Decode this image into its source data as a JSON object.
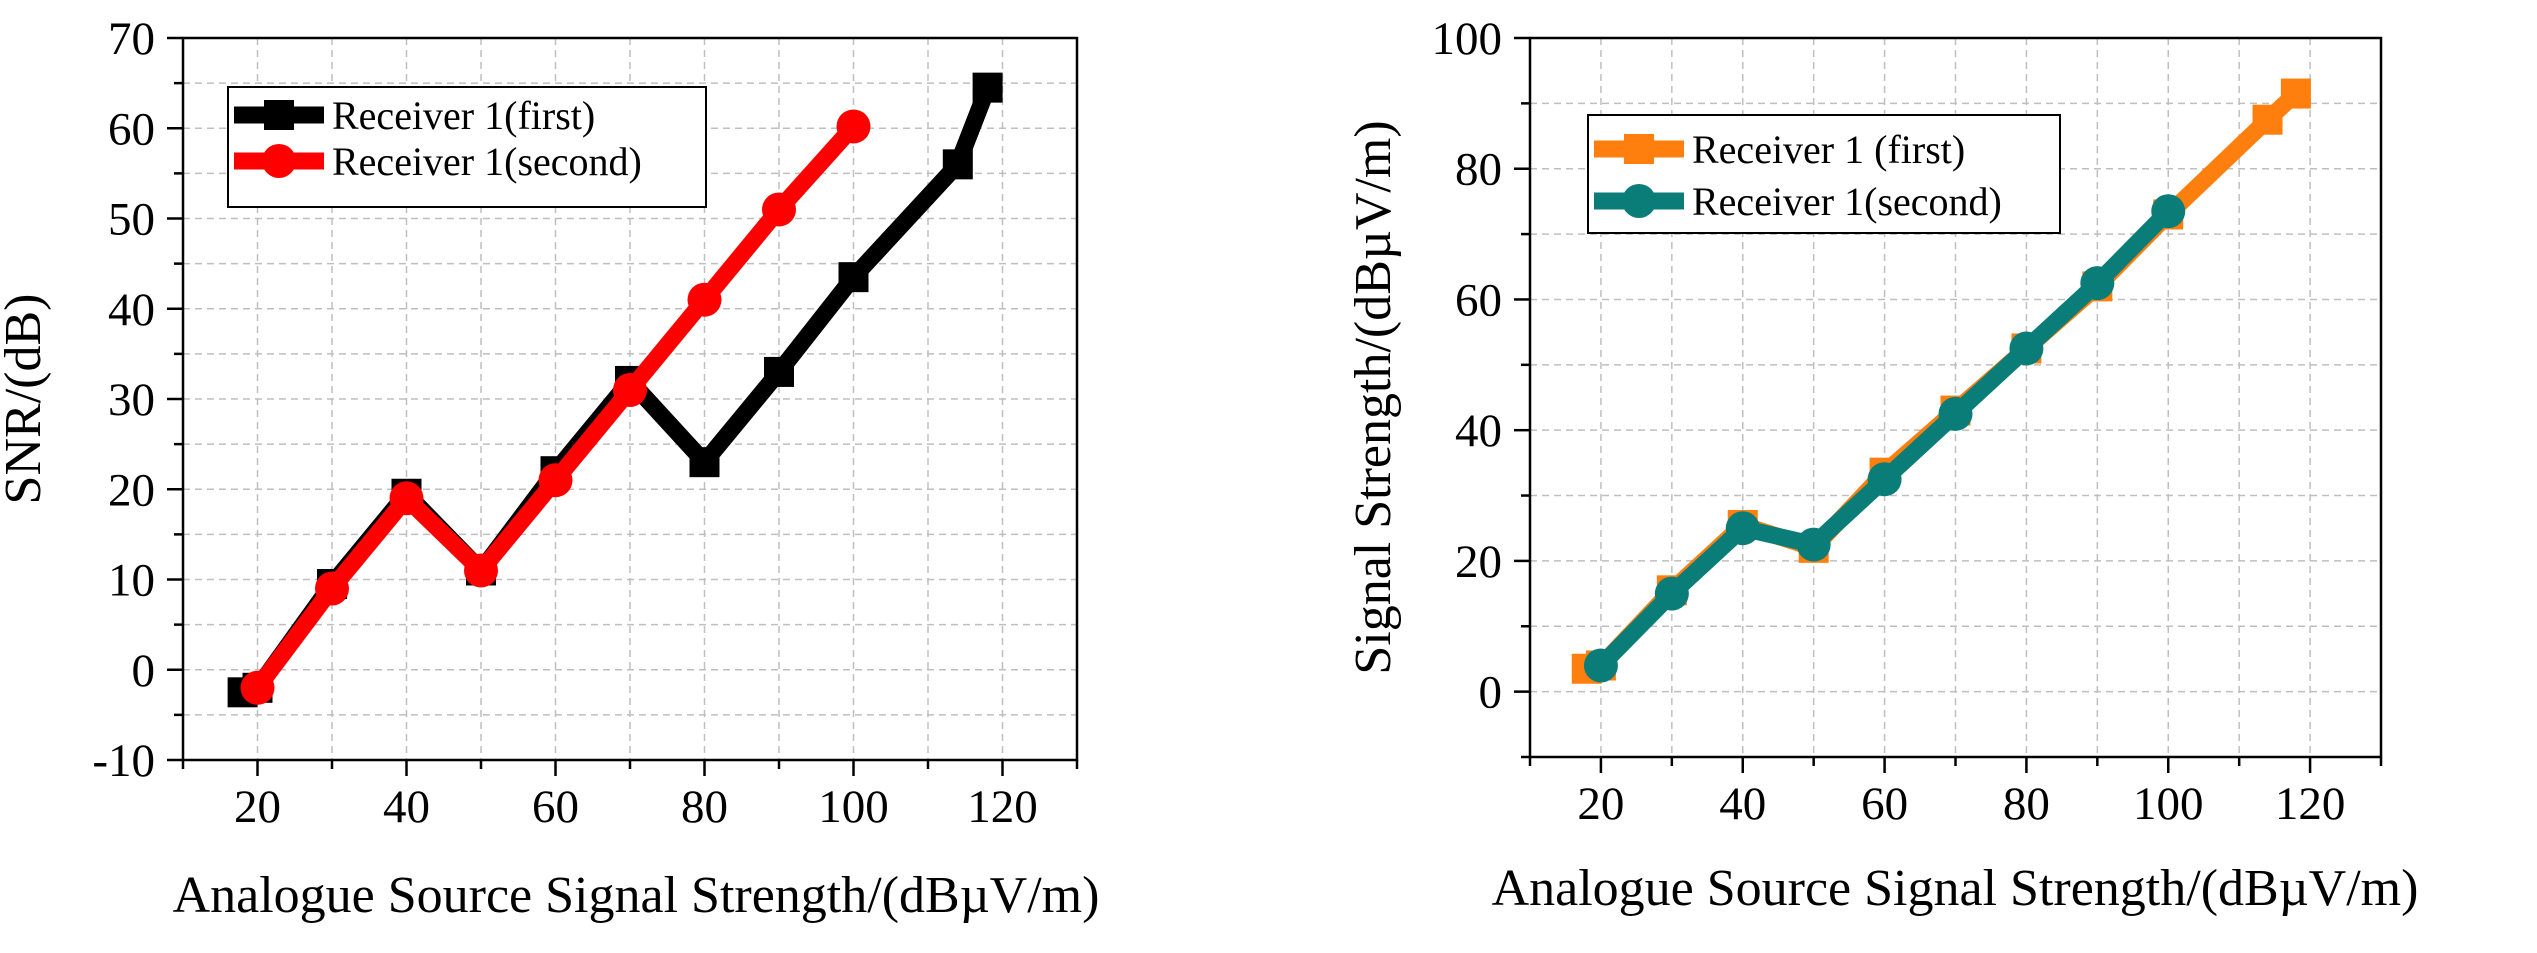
{
  "chart_data": [
    {
      "type": "line",
      "xlabel": "Analogue Source Signal Strength/(dBµV/m)",
      "ylabel": "SNR/(dB)",
      "xlim": [
        10,
        130
      ],
      "ylim": [
        -10,
        70
      ],
      "xticks": [
        20,
        40,
        60,
        80,
        100,
        120
      ],
      "yticks": [
        -10,
        0,
        10,
        20,
        30,
        40,
        50,
        60,
        70
      ],
      "grid": true,
      "legend": "top-left",
      "series": [
        {
          "name": "Receiver 1(first)",
          "color": "#000000",
          "marker": "square",
          "x": [
            18,
            20,
            30,
            40,
            50,
            60,
            70,
            80,
            90,
            100,
            114,
            118
          ],
          "y": [
            -2.5,
            -2,
            9.5,
            19.5,
            11,
            22,
            32,
            23,
            33,
            43.5,
            56,
            64.5
          ]
        },
        {
          "name": "Receiver 1(second)",
          "color": "#ff0000",
          "marker": "circle",
          "x": [
            20,
            30,
            40,
            50,
            60,
            70,
            80,
            90,
            100
          ],
          "y": [
            -2,
            9,
            19,
            11,
            21,
            31,
            41,
            51,
            60.2
          ]
        }
      ]
    },
    {
      "type": "line",
      "xlabel": "Analogue Source Signal Strength/(dBµV/m)",
      "ylabel": "Signal Strength/(dBµV/m)",
      "xlim": [
        10,
        130
      ],
      "ylim": [
        -10,
        100
      ],
      "xticks": [
        20,
        40,
        60,
        80,
        100,
        120
      ],
      "yticks": [
        0,
        20,
        40,
        60,
        80,
        100
      ],
      "grid": true,
      "legend": "top-left",
      "series": [
        {
          "name": "Receiver 1 (first)",
          "color": "#ff7f0e",
          "marker": "square",
          "x": [
            18,
            20,
            30,
            40,
            50,
            60,
            70,
            80,
            90,
            100,
            114,
            118
          ],
          "y": [
            3.5,
            4,
            15.5,
            25.5,
            22,
            33.5,
            43,
            52.5,
            62,
            73,
            87.5,
            91.5
          ]
        },
        {
          "name": "Receiver 1(second)",
          "color": "#0a7d78",
          "marker": "circle",
          "x": [
            20,
            30,
            40,
            50,
            60,
            70,
            80,
            90,
            100
          ],
          "y": [
            4,
            15,
            25,
            22.5,
            32.5,
            42.5,
            52.5,
            62.5,
            73.5
          ]
        }
      ]
    }
  ]
}
